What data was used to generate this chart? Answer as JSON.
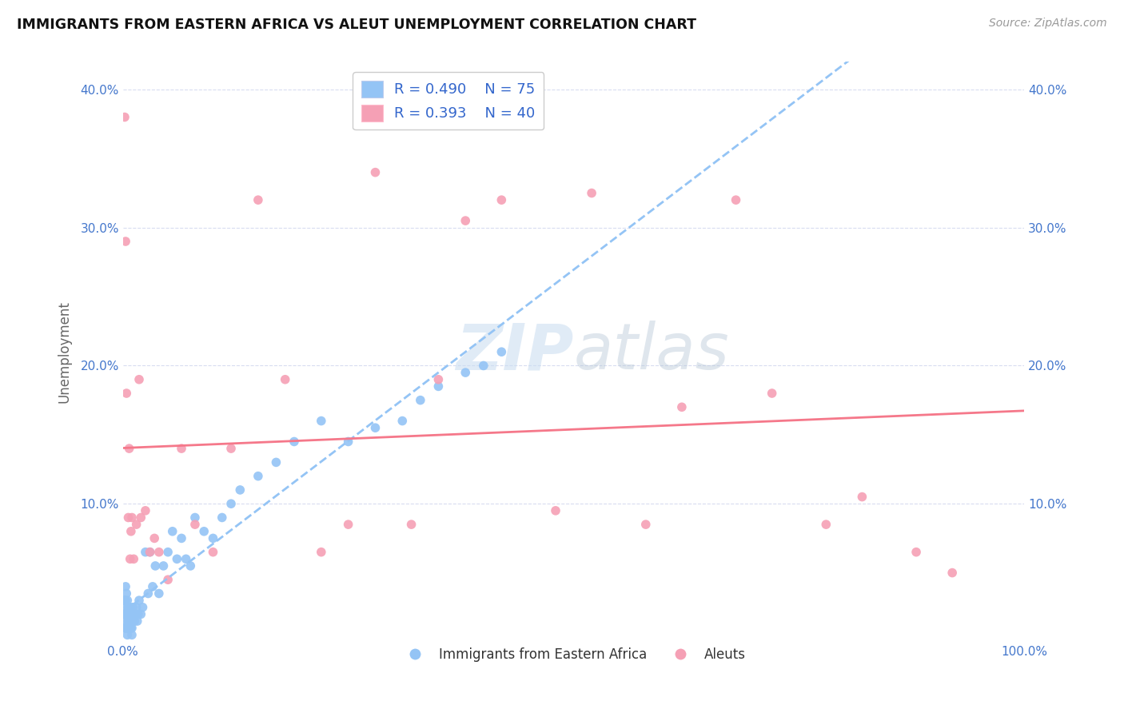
{
  "title": "IMMIGRANTS FROM EASTERN AFRICA VS ALEUT UNEMPLOYMENT CORRELATION CHART",
  "source": "Source: ZipAtlas.com",
  "ylabel": "Unemployment",
  "watermark": "ZIPatlas",
  "legend_label_blue": "Immigrants from Eastern Africa",
  "legend_label_pink": "Aleuts",
  "xlim": [
    0,
    1.0
  ],
  "ylim": [
    0,
    0.42
  ],
  "xticks": [
    0.0,
    0.1,
    0.2,
    0.3,
    0.4,
    0.5,
    0.6,
    0.7,
    0.8,
    0.9,
    1.0
  ],
  "xticklabels": [
    "0.0%",
    "",
    "",
    "",
    "",
    "",
    "",
    "",
    "",
    "",
    "100.0%"
  ],
  "yticks": [
    0.0,
    0.1,
    0.2,
    0.3,
    0.4
  ],
  "yticklabels": [
    "",
    "10.0%",
    "20.0%",
    "30.0%",
    "40.0%"
  ],
  "blue_color": "#94C4F5",
  "pink_color": "#F5A0B5",
  "trend_blue_color": "#94C4F5",
  "trend_pink_color": "#F5788A",
  "background_color": "#FFFFFF",
  "grid_color": "#D8DCF0",
  "legend_r1": "R = 0.490",
  "legend_n1": "N = 75",
  "legend_r2": "R = 0.393",
  "legend_n2": "N = 40",
  "blue_x": [
    0.001,
    0.001,
    0.001,
    0.002,
    0.002,
    0.002,
    0.002,
    0.003,
    0.003,
    0.003,
    0.003,
    0.004,
    0.004,
    0.004,
    0.004,
    0.005,
    0.005,
    0.005,
    0.005,
    0.006,
    0.006,
    0.006,
    0.007,
    0.007,
    0.007,
    0.008,
    0.008,
    0.008,
    0.009,
    0.009,
    0.01,
    0.01,
    0.01,
    0.011,
    0.011,
    0.012,
    0.013,
    0.014,
    0.015,
    0.016,
    0.017,
    0.018,
    0.02,
    0.022,
    0.025,
    0.028,
    0.03,
    0.033,
    0.036,
    0.04,
    0.045,
    0.05,
    0.055,
    0.06,
    0.065,
    0.07,
    0.075,
    0.08,
    0.09,
    0.1,
    0.11,
    0.12,
    0.13,
    0.15,
    0.17,
    0.19,
    0.22,
    0.25,
    0.28,
    0.31,
    0.33,
    0.35,
    0.38,
    0.4,
    0.42
  ],
  "blue_y": [
    0.01,
    0.02,
    0.03,
    0.01,
    0.015,
    0.02,
    0.03,
    0.01,
    0.02,
    0.03,
    0.04,
    0.01,
    0.02,
    0.025,
    0.035,
    0.005,
    0.01,
    0.02,
    0.03,
    0.01,
    0.015,
    0.025,
    0.01,
    0.015,
    0.02,
    0.01,
    0.015,
    0.025,
    0.01,
    0.02,
    0.005,
    0.01,
    0.02,
    0.015,
    0.025,
    0.02,
    0.015,
    0.02,
    0.025,
    0.015,
    0.02,
    0.03,
    0.02,
    0.025,
    0.065,
    0.035,
    0.065,
    0.04,
    0.055,
    0.035,
    0.055,
    0.065,
    0.08,
    0.06,
    0.075,
    0.06,
    0.055,
    0.09,
    0.08,
    0.075,
    0.09,
    0.1,
    0.11,
    0.12,
    0.13,
    0.145,
    0.16,
    0.145,
    0.155,
    0.16,
    0.175,
    0.185,
    0.195,
    0.2,
    0.21
  ],
  "pink_x": [
    0.002,
    0.003,
    0.004,
    0.006,
    0.007,
    0.008,
    0.009,
    0.01,
    0.012,
    0.015,
    0.018,
    0.02,
    0.025,
    0.03,
    0.035,
    0.04,
    0.05,
    0.065,
    0.08,
    0.1,
    0.12,
    0.15,
    0.18,
    0.22,
    0.25,
    0.28,
    0.32,
    0.35,
    0.38,
    0.42,
    0.48,
    0.52,
    0.58,
    0.62,
    0.68,
    0.72,
    0.78,
    0.82,
    0.88,
    0.92
  ],
  "pink_y": [
    0.38,
    0.29,
    0.18,
    0.09,
    0.14,
    0.06,
    0.08,
    0.09,
    0.06,
    0.085,
    0.19,
    0.09,
    0.095,
    0.065,
    0.075,
    0.065,
    0.045,
    0.14,
    0.085,
    0.065,
    0.14,
    0.32,
    0.19,
    0.065,
    0.085,
    0.34,
    0.085,
    0.19,
    0.305,
    0.32,
    0.095,
    0.325,
    0.085,
    0.17,
    0.32,
    0.18,
    0.085,
    0.105,
    0.065,
    0.05
  ]
}
